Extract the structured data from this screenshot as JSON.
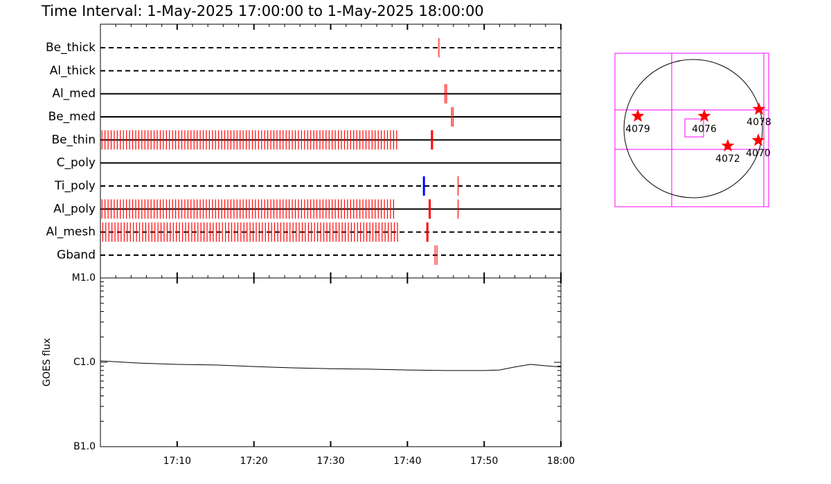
{
  "title": "Time Interval:  1-May-2025 17:00:00 to  1-May-2025 18:00:00",
  "chart_data": [
    {
      "type": "timeline",
      "color": "#ff0000",
      "xlim": [
        0,
        60
      ],
      "rows": [
        {
          "name": "Be_thick",
          "line": "dashed",
          "x": [
            44.1
          ]
        },
        {
          "name": "Al_thick",
          "line": "dashed",
          "x": []
        },
        {
          "name": "Al_med",
          "line": "solid",
          "x": [
            44.9,
            45.1
          ]
        },
        {
          "name": "Be_med",
          "line": "solid",
          "x": [
            45.75,
            45.95
          ]
        },
        {
          "name": "Be_thin",
          "line": "solid",
          "x": [
            0.2,
            0.6,
            1,
            1.4,
            1.8,
            2.2,
            2.6,
            3,
            3.4,
            3.8,
            4.2,
            4.6,
            5,
            5.4,
            5.8,
            6.2,
            6.6,
            7,
            7.4,
            7.8,
            8.2,
            8.6,
            9,
            9.4,
            9.8,
            10.2,
            10.6,
            11,
            11.4,
            11.8,
            12.2,
            12.6,
            13,
            13.4,
            13.8,
            14.2,
            14.6,
            15,
            15.4,
            15.8,
            16.2,
            16.6,
            17,
            17.4,
            17.8,
            18.2,
            18.6,
            19,
            19.4,
            19.8,
            20.2,
            20.6,
            21,
            21.4,
            21.8,
            22.2,
            22.6,
            23,
            23.4,
            23.8,
            24.2,
            24.6,
            25,
            25.4,
            25.8,
            26.2,
            26.6,
            27,
            27.4,
            27.8,
            28.2,
            28.6,
            29,
            29.4,
            29.8,
            30.2,
            30.6,
            31,
            31.4,
            31.8,
            32.2,
            32.6,
            33,
            33.4,
            33.8,
            34.2,
            34.6,
            35,
            35.4,
            35.8,
            36.2,
            36.6,
            37,
            37.4,
            37.8,
            38.2,
            38.6
          ],
          "marker_x": [
            43.2
          ]
        },
        {
          "name": "C_poly",
          "line": "solid",
          "x": []
        },
        {
          "name": "Ti_poly",
          "line": "dashed",
          "x": [
            46.6
          ],
          "marker_x": [
            42.15
          ],
          "marker_color": "#0000ff"
        },
        {
          "name": "Al_poly",
          "line": "solid",
          "x": [
            0.2,
            0.6,
            1,
            1.4,
            1.8,
            2.2,
            2.6,
            3,
            3.4,
            3.8,
            4.2,
            4.6,
            5,
            5.4,
            5.8,
            6.2,
            6.6,
            7,
            7.4,
            7.8,
            8.2,
            8.6,
            9,
            9.4,
            9.8,
            10.2,
            10.6,
            11,
            11.4,
            11.8,
            12.2,
            12.6,
            13,
            13.4,
            13.8,
            14.2,
            14.6,
            15,
            15.4,
            15.8,
            16.2,
            16.6,
            17,
            17.4,
            17.8,
            18.2,
            18.6,
            19,
            19.4,
            19.8,
            20.2,
            20.6,
            21,
            21.4,
            21.8,
            22.2,
            22.6,
            23,
            23.4,
            23.8,
            24.2,
            24.6,
            25,
            25.4,
            25.8,
            26.2,
            26.6,
            27,
            27.4,
            27.8,
            28.2,
            28.6,
            29,
            29.4,
            29.8,
            30.2,
            30.6,
            31,
            31.4,
            31.8,
            32.2,
            32.6,
            33,
            33.4,
            33.8,
            34.2,
            34.6,
            35,
            35.4,
            35.8,
            36.2,
            36.6,
            37,
            37.4,
            37.8,
            38.2,
            46.6
          ],
          "marker_x": [
            42.9
          ]
        },
        {
          "name": "Al_mesh",
          "line": "dashed",
          "x": [
            0.3,
            0.7,
            1.1,
            1.5,
            1.9,
            2.3,
            2.7,
            3.1,
            3.5,
            3.9,
            4.3,
            4.7,
            5.1,
            5.5,
            5.9,
            6.3,
            6.7,
            7.1,
            7.5,
            7.9,
            8.3,
            8.7,
            9.1,
            9.5,
            9.9,
            10.3,
            10.7,
            11.1,
            11.5,
            11.9,
            12.3,
            12.7,
            13.1,
            13.5,
            13.9,
            14.3,
            14.7,
            15.1,
            15.5,
            15.9,
            16.3,
            16.7,
            17.1,
            17.5,
            17.9,
            18.3,
            18.7,
            19.1,
            19.5,
            19.9,
            20.3,
            20.7,
            21.1,
            21.5,
            21.9,
            22.3,
            22.7,
            23.1,
            23.5,
            23.9,
            24.3,
            24.7,
            25.1,
            25.5,
            25.9,
            26.3,
            26.7,
            27.1,
            27.5,
            27.9,
            28.3,
            28.7,
            29.1,
            29.5,
            29.9,
            30.3,
            30.7,
            31.1,
            31.5,
            31.9,
            32.3,
            32.7,
            33.1,
            33.5,
            33.9,
            34.3,
            34.7,
            35.1,
            35.5,
            35.9,
            36.3,
            36.7,
            37.1,
            37.5,
            37.9,
            38.3,
            38.7
          ],
          "marker_x": [
            42.6
          ]
        },
        {
          "name": "Gband",
          "line": "dashed",
          "x": [
            43.6,
            43.85
          ]
        }
      ]
    },
    {
      "type": "line",
      "y_label": "GOES flux",
      "log_y": true,
      "color": "#000000",
      "xlim": [
        0,
        60
      ],
      "xticks": [
        {
          "value": 10,
          "label": "17:10"
        },
        {
          "value": 20,
          "label": "17:20"
        },
        {
          "value": 30,
          "label": "17:30"
        },
        {
          "value": 40,
          "label": "17:40"
        },
        {
          "value": 50,
          "label": "17:50"
        },
        {
          "value": 60,
          "label": "18:00"
        }
      ],
      "ylim": [
        1e-07,
        1e-05
      ],
      "yticks": [
        {
          "value": 1e-07,
          "label": "B1.0"
        },
        {
          "value": 1e-06,
          "label": "C1.0"
        },
        {
          "value": 1e-05,
          "label": "M1.0"
        }
      ],
      "x": [
        0,
        5,
        10,
        15,
        20,
        25,
        30,
        35,
        40,
        45,
        50,
        52,
        54,
        56,
        58,
        60
      ],
      "values": [
        1.04e-06,
        9.8e-07,
        9.45e-07,
        9.3e-07,
        8.9e-07,
        8.6e-07,
        8.4e-07,
        8.3e-07,
        8.1e-07,
        8e-07,
        8e-07,
        8.1e-07,
        8.8e-07,
        9.45e-07,
        9.1e-07,
        8.8e-07
      ]
    }
  ],
  "map": {
    "regions": [
      {
        "label": "4079"
      },
      {
        "label": "4076"
      },
      {
        "label": "4078"
      },
      {
        "label": "4072"
      },
      {
        "label": "4070"
      }
    ]
  }
}
